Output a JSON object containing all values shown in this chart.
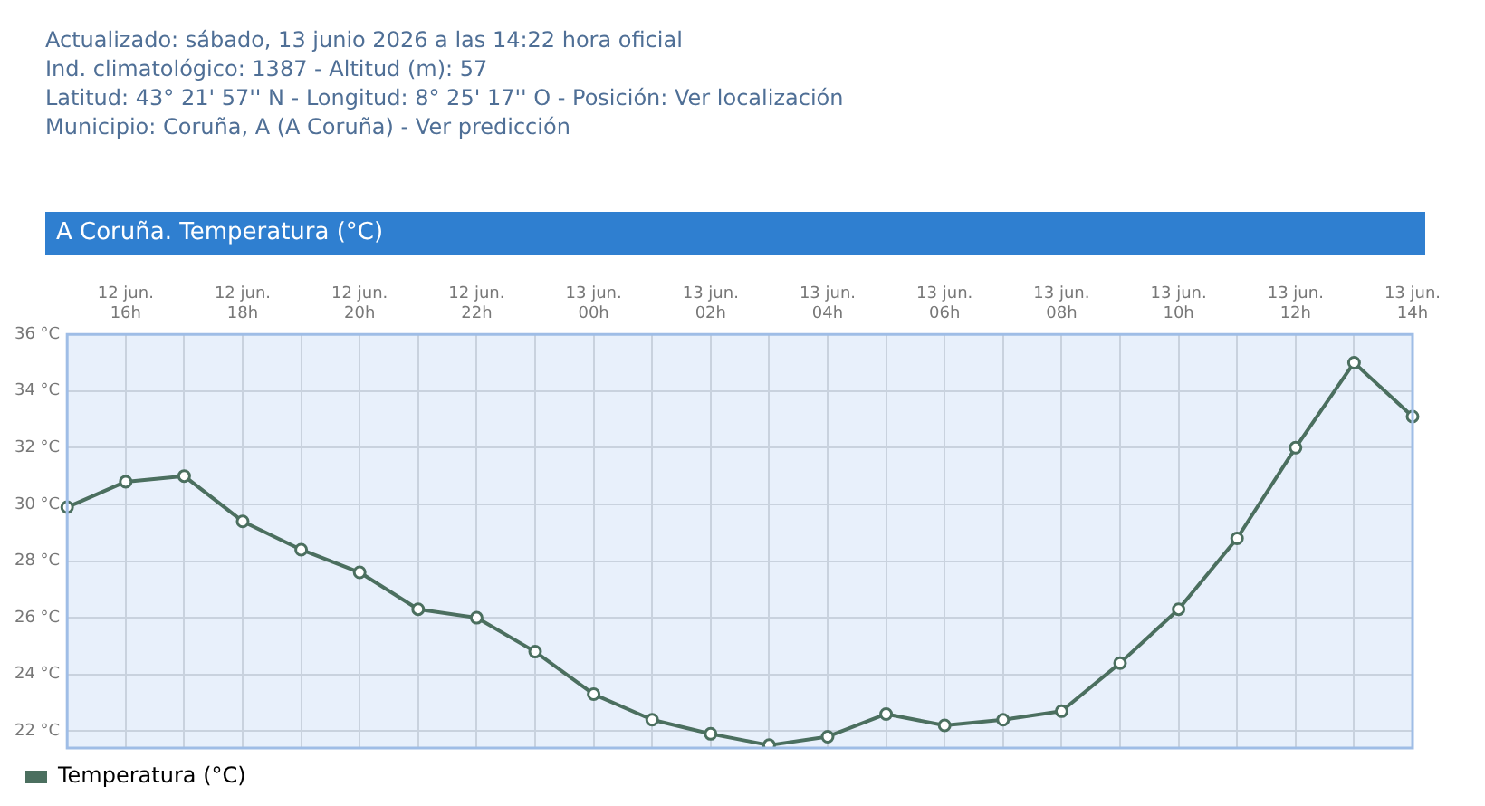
{
  "chart_data": {
    "type": "line",
    "title": "A Coruña. Temperatura (°C)",
    "annotations": [
      "Actualizado: sábado, 13 junio 2026 a las 14:22 hora oficial",
      "Ind. climatológico: 1387 -  Altitud (m): 57",
      "Latitud: 43° 21' 57'' N - Longitud: 8° 25' 17'' O -  Posición:  Ver localización",
      "Municipio:  Coruña, A (A Coruña) - Ver predicción"
    ],
    "categories": [
      null,
      "12 jun.\n16h",
      null,
      "12 jun.\n18h",
      null,
      "12 jun.\n20h",
      null,
      "12 jun.\n22h",
      null,
      "13 jun.\n00h",
      null,
      "13 jun.\n02h",
      null,
      "13 jun.\n04h",
      null,
      "13 jun.\n06h",
      null,
      "13 jun.\n08h",
      null,
      "13 jun.\n10h",
      null,
      "13 jun.\n12h",
      null,
      "13 jun.\n14h"
    ],
    "series": [
      {
        "name": "Temperatura (°C)",
        "color": "#4b6f5f",
        "values": [
          29.9,
          30.8,
          31.0,
          29.4,
          28.4,
          27.6,
          26.3,
          26.0,
          24.8,
          23.3,
          22.4,
          21.9,
          21.5,
          21.8,
          22.6,
          22.2,
          22.4,
          22.7,
          24.4,
          26.3,
          28.8,
          32.0,
          35.0,
          33.1
        ]
      }
    ],
    "ylim": [
      21.4,
      36
    ],
    "yticks": [
      {
        "value": 22,
        "label": "22 °C"
      },
      {
        "value": 24,
        "label": "24 °C"
      },
      {
        "value": 26,
        "label": "26 °C"
      },
      {
        "value": 28,
        "label": "28 °C"
      },
      {
        "value": 30,
        "label": "30 °C"
      },
      {
        "value": 32,
        "label": "32 °C"
      },
      {
        "value": 34,
        "label": "34 °C"
      },
      {
        "value": 36,
        "label": "36 °C"
      }
    ],
    "grid": true,
    "legend": "bottom left",
    "marker": "circle",
    "line_style": "solid"
  }
}
